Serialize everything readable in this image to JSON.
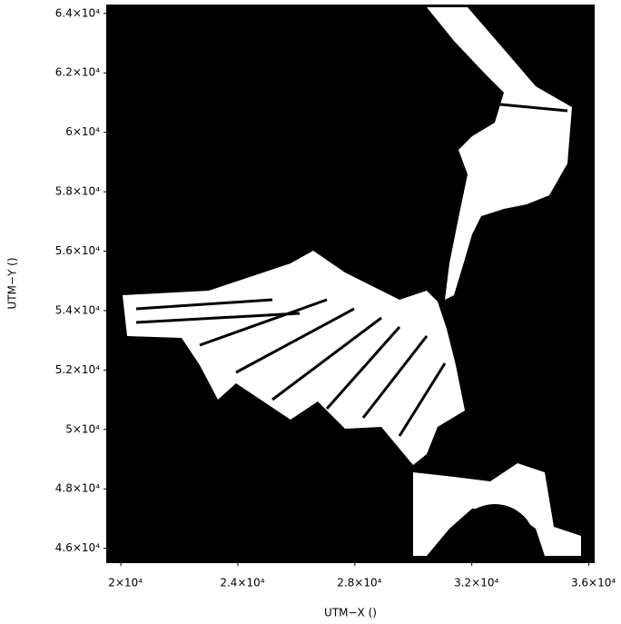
{
  "chart_data": {
    "type": "image",
    "xlabel": "UTM−X ()",
    "ylabel": "UTM−Y ()",
    "xlim": [
      19500,
      36200
    ],
    "ylim": [
      45500,
      64300
    ],
    "xticks": [
      {
        "value": 20000,
        "label": "2×10⁴"
      },
      {
        "value": 24000,
        "label": "2.4×10⁴"
      },
      {
        "value": 28000,
        "label": "2.8×10⁴"
      },
      {
        "value": 32000,
        "label": "3.2×10⁴"
      },
      {
        "value": 36000,
        "label": "3.6×10⁴"
      }
    ],
    "yticks": [
      {
        "value": 46000,
        "label": "4.6×10⁴"
      },
      {
        "value": 48000,
        "label": "4.8×10⁴"
      },
      {
        "value": 50000,
        "label": "5×10⁴"
      },
      {
        "value": 52000,
        "label": "5.2×10⁴"
      },
      {
        "value": 54000,
        "label": "5.4×10⁴"
      },
      {
        "value": 56000,
        "label": "5.6×10⁴"
      },
      {
        "value": 58000,
        "label": "5.8×10⁴"
      },
      {
        "value": 60000,
        "label": "6×10⁴"
      },
      {
        "value": 62000,
        "label": "6.2×10⁴"
      },
      {
        "value": 64000,
        "label": "6.4×10⁴"
      }
    ]
  }
}
